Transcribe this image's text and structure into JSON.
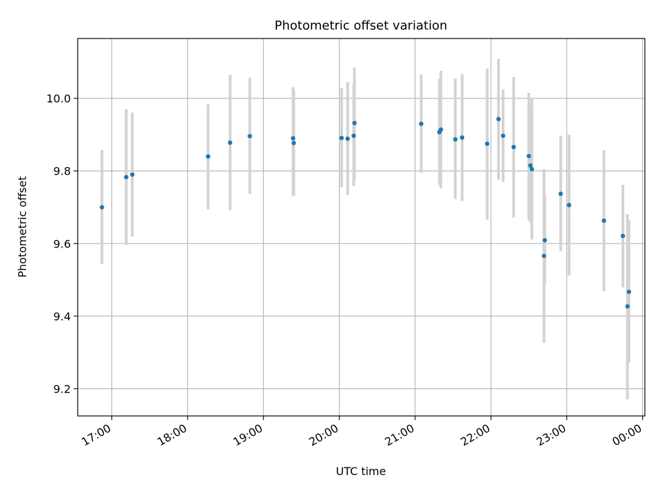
{
  "chart_data": {
    "type": "scatter",
    "title": "Photometric offset variation",
    "xlabel": "UTC time",
    "ylabel": "Photometric offset",
    "x_unit": "hours UTC (values past 24 are after midnight)",
    "xlim": [
      16.55,
      24.03
    ],
    "ylim": [
      9.125,
      10.165
    ],
    "x_ticks": [
      {
        "value": 17,
        "label": "17:00"
      },
      {
        "value": 18,
        "label": "18:00"
      },
      {
        "value": 19,
        "label": "19:00"
      },
      {
        "value": 20,
        "label": "20:00"
      },
      {
        "value": 21,
        "label": "21:00"
      },
      {
        "value": 22,
        "label": "22:00"
      },
      {
        "value": 23,
        "label": "23:00"
      },
      {
        "value": 24,
        "label": "00:00"
      }
    ],
    "y_ticks": [
      {
        "value": 9.2,
        "label": "9.2"
      },
      {
        "value": 9.4,
        "label": "9.4"
      },
      {
        "value": 9.6,
        "label": "9.6"
      },
      {
        "value": 9.8,
        "label": "9.8"
      },
      {
        "value": 10.0,
        "label": "10.0"
      }
    ],
    "grid": true,
    "legend": "none",
    "colors": {
      "point": "#1f77b4",
      "errorbar": "#d3d3d3",
      "grid": "#b0b0b0"
    },
    "points": [
      {
        "x": 16.87,
        "y": 9.7,
        "lo": 9.543,
        "hi": 9.858
      },
      {
        "x": 17.19,
        "y": 9.783,
        "lo": 9.596,
        "hi": 9.97
      },
      {
        "x": 17.27,
        "y": 9.79,
        "lo": 9.619,
        "hi": 9.961
      },
      {
        "x": 18.27,
        "y": 9.84,
        "lo": 9.694,
        "hi": 9.984
      },
      {
        "x": 18.56,
        "y": 9.878,
        "lo": 9.692,
        "hi": 10.065
      },
      {
        "x": 18.82,
        "y": 9.896,
        "lo": 9.737,
        "hi": 10.057
      },
      {
        "x": 19.39,
        "y": 9.89,
        "lo": 9.732,
        "hi": 10.031
      },
      {
        "x": 19.4,
        "y": 9.877,
        "lo": 9.732,
        "hi": 10.023
      },
      {
        "x": 20.03,
        "y": 9.891,
        "lo": 9.755,
        "hi": 10.028
      },
      {
        "x": 20.11,
        "y": 9.889,
        "lo": 9.734,
        "hi": 10.045
      },
      {
        "x": 20.19,
        "y": 9.897,
        "lo": 9.759,
        "hi": 10.04
      },
      {
        "x": 20.2,
        "y": 9.932,
        "lo": 9.774,
        "hi": 10.085
      },
      {
        "x": 21.08,
        "y": 9.93,
        "lo": 9.795,
        "hi": 10.066
      },
      {
        "x": 21.32,
        "y": 9.907,
        "lo": 9.761,
        "hi": 10.054
      },
      {
        "x": 21.34,
        "y": 9.914,
        "lo": 9.752,
        "hi": 10.076
      },
      {
        "x": 21.53,
        "y": 9.887,
        "lo": 9.723,
        "hi": 10.055
      },
      {
        "x": 21.62,
        "y": 9.892,
        "lo": 9.717,
        "hi": 10.067
      },
      {
        "x": 21.95,
        "y": 9.875,
        "lo": 9.666,
        "hi": 10.082
      },
      {
        "x": 22.1,
        "y": 9.943,
        "lo": 9.776,
        "hi": 10.109
      },
      {
        "x": 22.16,
        "y": 9.897,
        "lo": 9.77,
        "hi": 10.025
      },
      {
        "x": 22.3,
        "y": 9.866,
        "lo": 9.672,
        "hi": 10.059
      },
      {
        "x": 22.5,
        "y": 9.841,
        "lo": 9.665,
        "hi": 10.015
      },
      {
        "x": 22.52,
        "y": 9.815,
        "lo": 9.658,
        "hi": 9.973
      },
      {
        "x": 22.54,
        "y": 9.805,
        "lo": 9.611,
        "hi": 10.0
      },
      {
        "x": 22.7,
        "y": 9.566,
        "lo": 9.326,
        "hi": 9.805
      },
      {
        "x": 22.71,
        "y": 9.609,
        "lo": 9.488,
        "hi": 9.733
      },
      {
        "x": 22.92,
        "y": 9.737,
        "lo": 9.579,
        "hi": 9.897
      },
      {
        "x": 23.03,
        "y": 9.706,
        "lo": 9.512,
        "hi": 9.9
      },
      {
        "x": 23.49,
        "y": 9.663,
        "lo": 9.469,
        "hi": 9.857
      },
      {
        "x": 23.74,
        "y": 9.621,
        "lo": 9.479,
        "hi": 9.762
      },
      {
        "x": 23.8,
        "y": 9.427,
        "lo": 9.171,
        "hi": 9.681
      },
      {
        "x": 23.82,
        "y": 9.467,
        "lo": 9.272,
        "hi": 9.664
      }
    ]
  }
}
